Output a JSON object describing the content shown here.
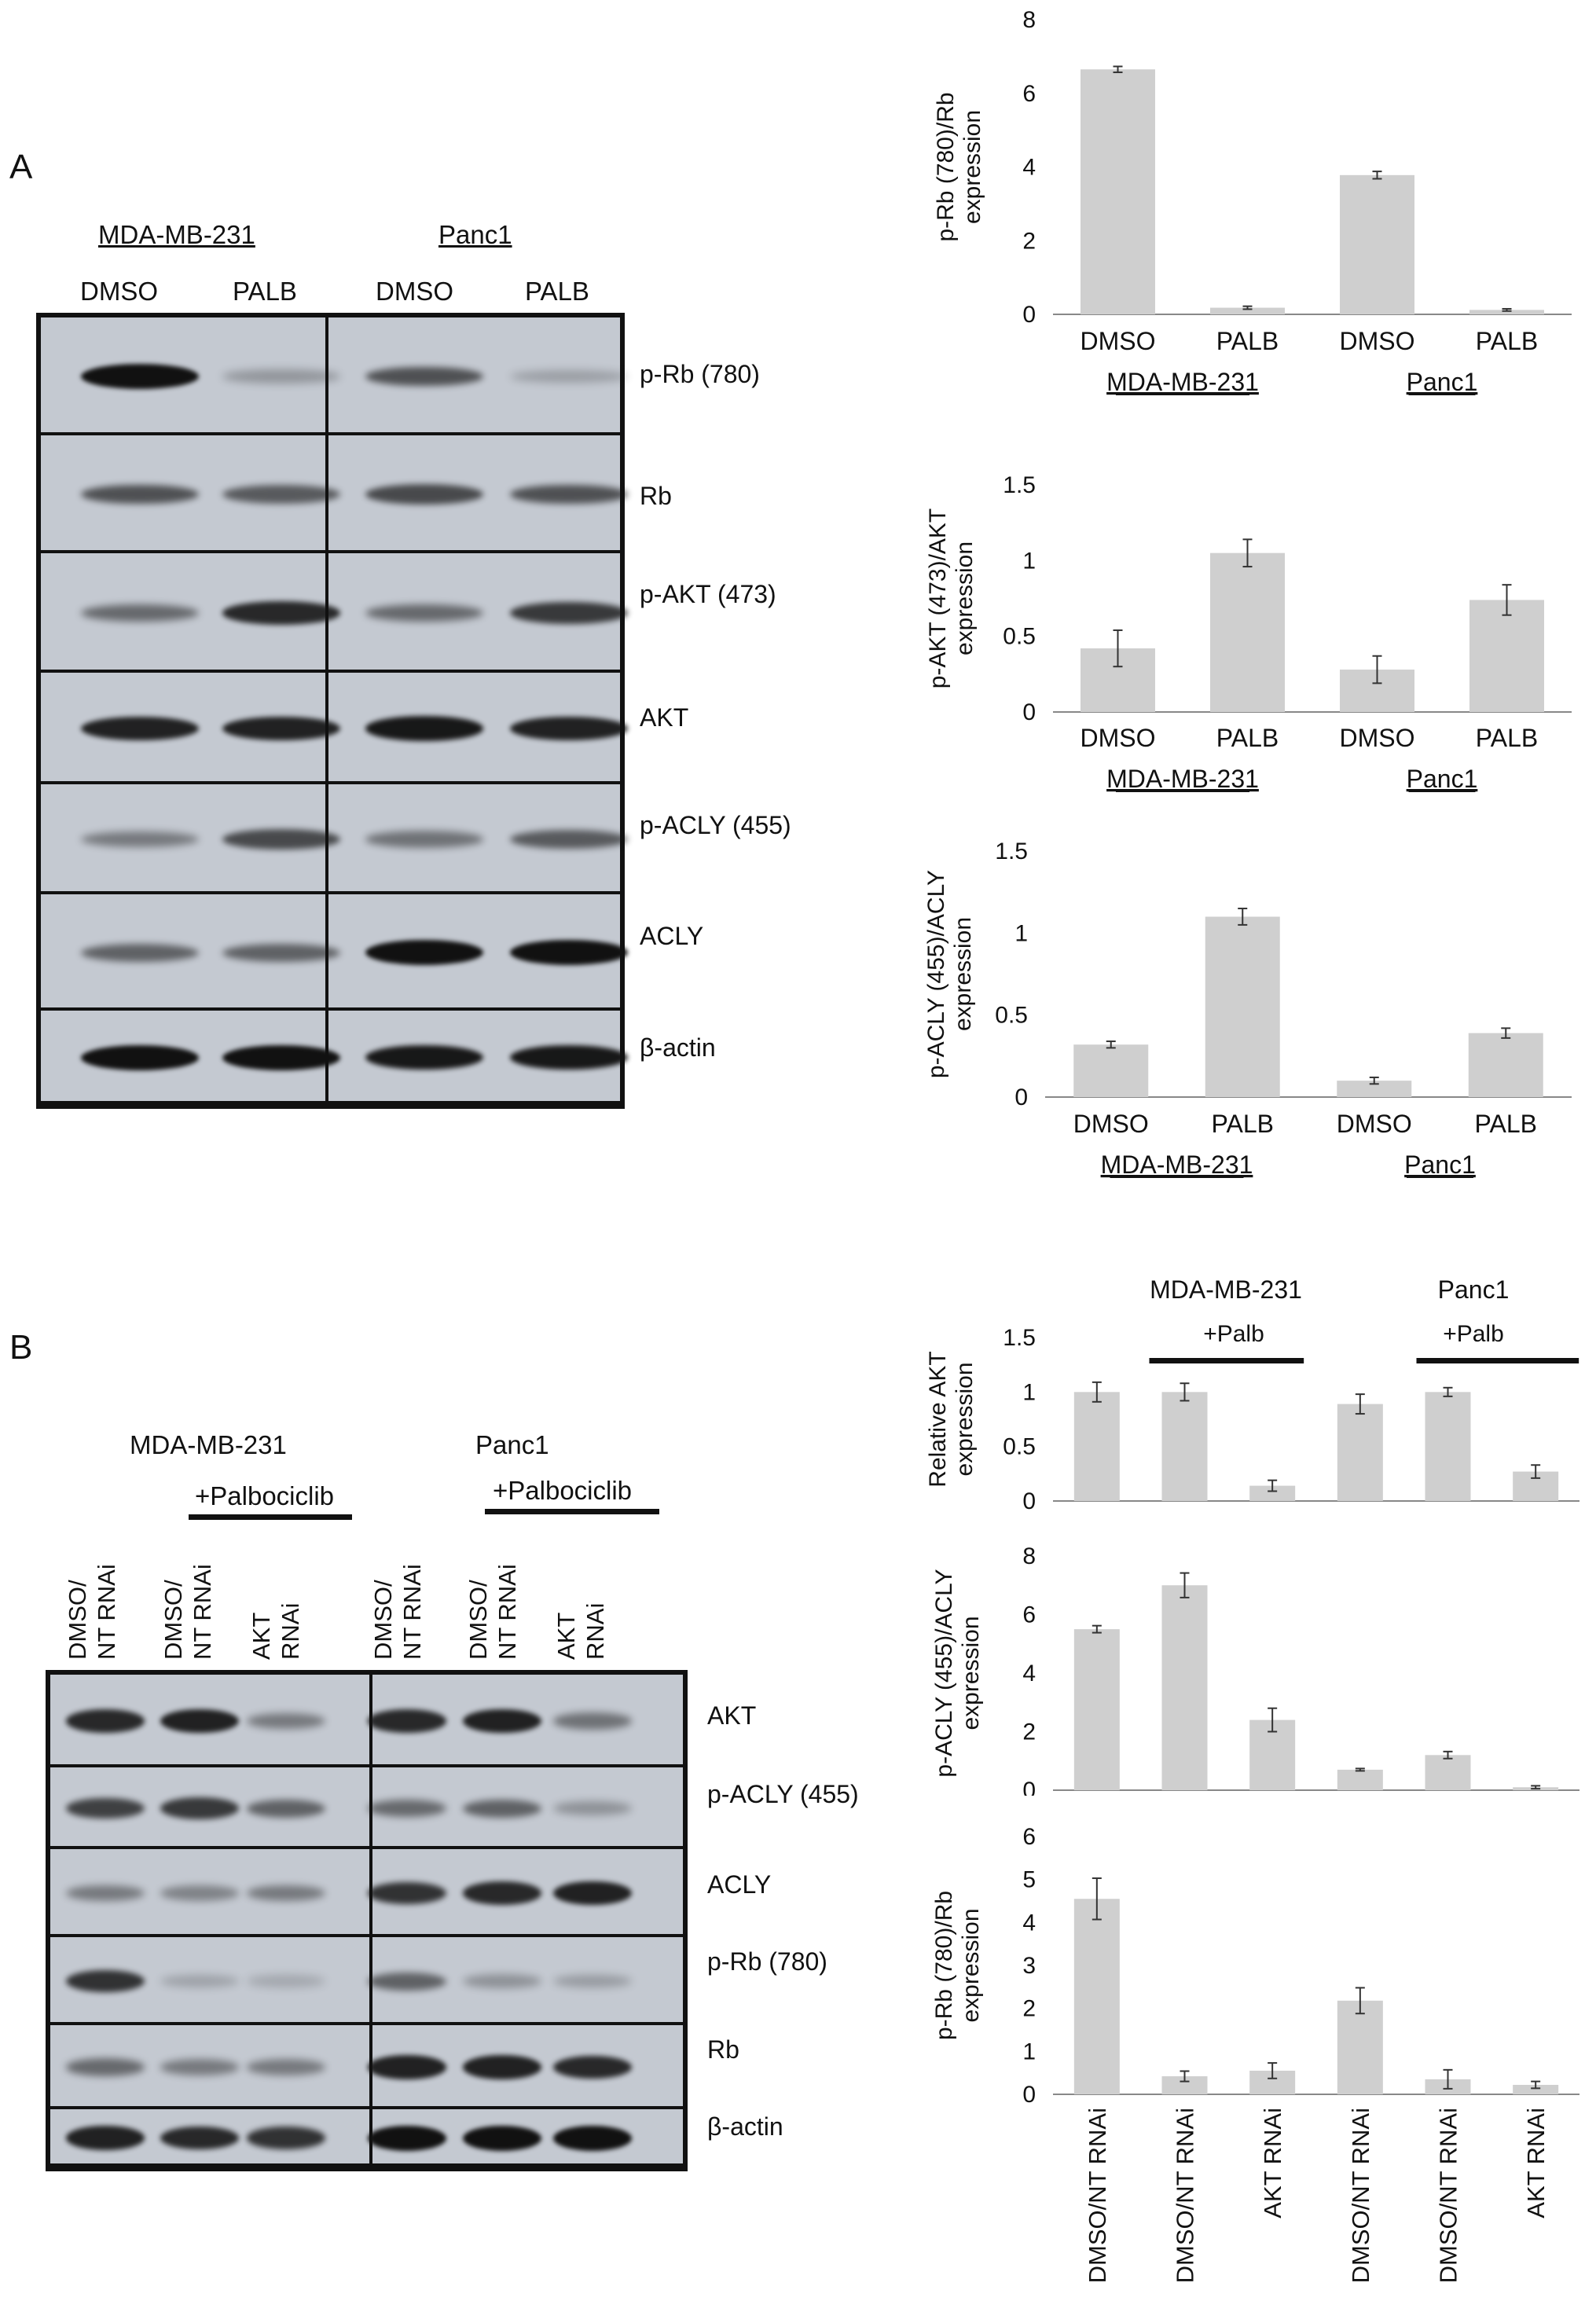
{
  "panel_a": {
    "letter": "A",
    "groups": [
      {
        "name": "MDA-MB-231",
        "lanes": [
          "DMSO",
          "PALB"
        ]
      },
      {
        "name": "Panc1",
        "lanes": [
          "DMSO",
          "PALB"
        ]
      }
    ],
    "markers": [
      "p-Rb (780)",
      "Rb",
      "p-AKT (473)",
      "AKT",
      "p-ACLY (455)",
      "ACLY",
      "β-actin"
    ],
    "band_intensities": [
      [
        1.0,
        0.18,
        0.6,
        0.12
      ],
      [
        0.6,
        0.55,
        0.65,
        0.6
      ],
      [
        0.45,
        0.85,
        0.45,
        0.75
      ],
      [
        0.9,
        0.9,
        0.95,
        0.9
      ],
      [
        0.35,
        0.65,
        0.4,
        0.55
      ],
      [
        0.5,
        0.5,
        1.0,
        1.0
      ],
      [
        1.0,
        1.0,
        0.95,
        0.95
      ]
    ]
  },
  "panel_b": {
    "letter": "B",
    "group_labels": [
      "MDA-MB-231",
      "Panc1"
    ],
    "treatment_label": "+Palbociclib",
    "lanes": [
      [
        "DMSO/",
        "NT RNAi"
      ],
      [
        "DMSO/",
        "NT RNAi"
      ],
      [
        "AKT",
        "RNAi"
      ],
      [
        "DMSO/",
        "NT RNAi"
      ],
      [
        "DMSO/",
        "NT RNAi"
      ],
      [
        "AKT",
        "RNAi"
      ]
    ],
    "markers": [
      "AKT",
      "p-ACLY (455)",
      "ACLY",
      "p-Rb (780)",
      "Rb",
      "β-actin"
    ],
    "band_intensities": [
      [
        0.85,
        0.9,
        0.35,
        0.85,
        0.9,
        0.4
      ],
      [
        0.7,
        0.75,
        0.5,
        0.45,
        0.5,
        0.2
      ],
      [
        0.35,
        0.3,
        0.35,
        0.8,
        0.85,
        0.9
      ],
      [
        0.8,
        0.1,
        0.08,
        0.5,
        0.2,
        0.15
      ],
      [
        0.45,
        0.35,
        0.35,
        0.9,
        0.9,
        0.85
      ],
      [
        0.9,
        0.85,
        0.8,
        1.0,
        1.0,
        1.0
      ]
    ]
  },
  "chart_data": [
    {
      "type": "bar",
      "categories": [
        "DMSO",
        "PALB",
        "DMSO",
        "PALB"
      ],
      "groups": [
        "MDA-MB-231",
        "Panc1"
      ],
      "values": [
        6.65,
        0.18,
        3.78,
        0.12
      ],
      "errors": [
        0.08,
        0.04,
        0.1,
        0.03
      ],
      "ylabel": "p-Rb (780)/Rb expression",
      "ylim": [
        0,
        8
      ],
      "yticks": [
        0,
        2,
        4,
        6,
        8
      ]
    },
    {
      "type": "bar",
      "categories": [
        "DMSO",
        "PALB",
        "DMSO",
        "PALB"
      ],
      "groups": [
        "MDA-MB-231",
        "Panc1"
      ],
      "values": [
        0.42,
        1.05,
        0.28,
        0.74
      ],
      "errors": [
        0.12,
        0.09,
        0.09,
        0.1
      ],
      "ylabel": "p-AKT (473)/AKT expression",
      "ylim": [
        0,
        1.5
      ],
      "yticks": [
        0,
        0.5,
        1,
        1.5
      ]
    },
    {
      "type": "bar",
      "categories": [
        "DMSO",
        "PALB",
        "DMSO",
        "PALB"
      ],
      "groups": [
        "MDA-MB-231",
        "Panc1"
      ],
      "values": [
        0.32,
        1.1,
        0.1,
        0.39
      ],
      "errors": [
        0.02,
        0.05,
        0.02,
        0.03
      ],
      "ylabel": "p-ACLY (455)/ACLY expression",
      "ylim": [
        0,
        1.5
      ],
      "yticks": [
        0,
        0.5,
        1,
        1.5
      ]
    },
    {
      "type": "bar",
      "categories": [
        "DMSO/NT RNAi",
        "DMSO/NT RNAi",
        "AKT RNAi",
        "DMSO/NT RNAi",
        "DMSO/NT RNAi",
        "AKT RNAi"
      ],
      "groups": [
        "MDA-MB-231",
        "Panc1"
      ],
      "treatment": "+Palb",
      "values": [
        1.0,
        1.0,
        0.14,
        0.89,
        1.0,
        0.27
      ],
      "errors": [
        0.09,
        0.08,
        0.05,
        0.09,
        0.04,
        0.06
      ],
      "ylabel": "Relative AKT expression",
      "ylim": [
        0,
        1.5
      ],
      "yticks": [
        0,
        0.5,
        1,
        1.5
      ]
    },
    {
      "type": "bar",
      "categories": [
        "DMSO/NT RNAi",
        "DMSO/NT RNAi",
        "AKT RNAi",
        "DMSO/NT RNAi",
        "DMSO/NT RNAi",
        "AKT RNAi"
      ],
      "values": [
        5.5,
        7.0,
        2.4,
        0.7,
        1.2,
        0.1
      ],
      "errors": [
        0.12,
        0.42,
        0.4,
        0.04,
        0.12,
        0.05
      ],
      "ylabel": "p-ACLY (455)/ACLY expression",
      "ylim": [
        0,
        8
      ],
      "yticks": [
        0,
        2,
        4,
        6,
        8
      ]
    },
    {
      "type": "bar",
      "categories": [
        "DMSO/NT RNAi",
        "DMSO/NT RNAi",
        "AKT RNAi",
        "DMSO/NT RNAi",
        "DMSO/NT RNAi",
        "AKT RNAi"
      ],
      "values": [
        4.55,
        0.42,
        0.55,
        2.18,
        0.35,
        0.22
      ],
      "errors": [
        0.48,
        0.12,
        0.18,
        0.3,
        0.22,
        0.08
      ],
      "ylabel": "p-Rb (780)/Rb expression",
      "ylim": [
        0,
        6
      ],
      "yticks": [
        0,
        1,
        2,
        3,
        4,
        5,
        6
      ]
    }
  ]
}
